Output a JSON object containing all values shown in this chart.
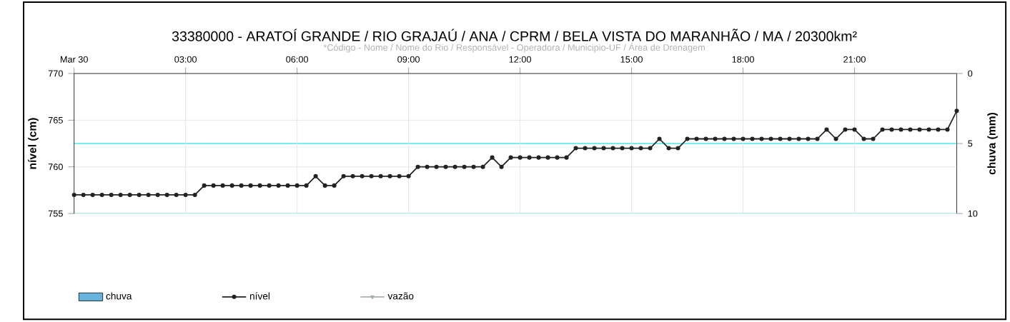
{
  "chart_data": {
    "type": "line",
    "title": "33380000 - ARATOÍ GRANDE / RIO GRAJAÚ / ANA / CPRM / BELA VISTA DO MARANHÃO / MA / 20300km²",
    "subtitle": "*Código - Nome / Nome do Rio / Responsável - Operadora / Municipio-UF / Área de Drenagem",
    "ylabel": "nível (cm)",
    "y2label": "chuva (mm)",
    "x": [
      0,
      0.25,
      0.5,
      0.75,
      1,
      1.25,
      1.5,
      1.75,
      2,
      2.25,
      2.5,
      2.75,
      3,
      3.25,
      3.5,
      3.75,
      4,
      4.25,
      4.5,
      4.75,
      5,
      5.25,
      5.5,
      5.75,
      6,
      6.25,
      6.5,
      6.75,
      7,
      7.25,
      7.5,
      7.75,
      8,
      8.25,
      8.5,
      8.75,
      9,
      9.25,
      9.5,
      9.75,
      10,
      10.25,
      10.5,
      10.75,
      11,
      11.25,
      11.5,
      11.75,
      12,
      12.25,
      12.5,
      12.75,
      13,
      13.25,
      13.5,
      13.75,
      14,
      14.25,
      14.5,
      14.75,
      15,
      15.25,
      15.5,
      15.75,
      16,
      16.25,
      16.5,
      16.75,
      17,
      17.25,
      17.5,
      17.75,
      18,
      18.25,
      18.5,
      18.75,
      19,
      19.25,
      19.5,
      19.75,
      20,
      20.25,
      20.5,
      20.75,
      21,
      21.25,
      21.5,
      21.75,
      22,
      22.25,
      22.5,
      22.75,
      23,
      23.25,
      23.5,
      23.75
    ],
    "series": [
      {
        "name": "chuva",
        "type": "bar",
        "color": "#66b3dd",
        "values": [
          null,
          null,
          null,
          null,
          null,
          null,
          null,
          null,
          null,
          null,
          null,
          null,
          null,
          null,
          null,
          null,
          null,
          null,
          null,
          null,
          null,
          null,
          null,
          null,
          null,
          null,
          null,
          null,
          null,
          null,
          null,
          null,
          null,
          null,
          null,
          null,
          null,
          null,
          null,
          null,
          null,
          null,
          null,
          null,
          null,
          null,
          null,
          null,
          null,
          null,
          null,
          null,
          null,
          null,
          null,
          null,
          null,
          null,
          null,
          null,
          null,
          null,
          null,
          null,
          null,
          null,
          null,
          null,
          null,
          null,
          null,
          null,
          null,
          null,
          null,
          null,
          null,
          null,
          null,
          null,
          null,
          null,
          null,
          null,
          null,
          null,
          null,
          null,
          null,
          null,
          null,
          null,
          null,
          null,
          null,
          null
        ]
      },
      {
        "name": "nível",
        "color": "#222222",
        "values": [
          757,
          757,
          757,
          757,
          757,
          757,
          757,
          757,
          757,
          757,
          757,
          757,
          757,
          757,
          758,
          758,
          758,
          758,
          758,
          758,
          758,
          758,
          758,
          758,
          758,
          758,
          759,
          758,
          758,
          759,
          759,
          759,
          759,
          759,
          759,
          759,
          759,
          760,
          760,
          760,
          760,
          760,
          760,
          760,
          760,
          761,
          760,
          761,
          761,
          761,
          761,
          761,
          761,
          761,
          762,
          762,
          762,
          762,
          762,
          762,
          762,
          762,
          762,
          763,
          762,
          762,
          763,
          763,
          763,
          763,
          763,
          763,
          763,
          763,
          763,
          763,
          763,
          763,
          763,
          763,
          763,
          764,
          763,
          764,
          764,
          763,
          763,
          764,
          764,
          764,
          764,
          764,
          764,
          764,
          764,
          766
        ]
      },
      {
        "name": "vazão",
        "type": "line",
        "color": "#a6b0b0",
        "marker": "triangle",
        "values": [
          null,
          null,
          null,
          null,
          null,
          null,
          null,
          null,
          null,
          null,
          null,
          null,
          null,
          null,
          null,
          null,
          null,
          null,
          null,
          null,
          null,
          null,
          null,
          null,
          null,
          null,
          null,
          null,
          null,
          null,
          null,
          null,
          null,
          null,
          null,
          null,
          null,
          null,
          null,
          null,
          null,
          null,
          null,
          null,
          null,
          null,
          null,
          null,
          null,
          null,
          null,
          null,
          null,
          null,
          null,
          null,
          null,
          null,
          null,
          null,
          null,
          null,
          null,
          null,
          null,
          null,
          null,
          null,
          null,
          null,
          null,
          null,
          null,
          null,
          null,
          null,
          null,
          null,
          null,
          null,
          null,
          null,
          null,
          null,
          null,
          null,
          null,
          null,
          null,
          null,
          null,
          null,
          null,
          null,
          null,
          null
        ]
      }
    ],
    "xlim": [
      0,
      23.75
    ],
    "xticks": [
      {
        "value": 0,
        "label": "Mar 30"
      },
      {
        "value": 3,
        "label": "03:00"
      },
      {
        "value": 6,
        "label": "06:00"
      },
      {
        "value": 9,
        "label": "09:00"
      },
      {
        "value": 12,
        "label": "12:00"
      },
      {
        "value": 15,
        "label": "15:00"
      },
      {
        "value": 18,
        "label": "18:00"
      },
      {
        "value": 21,
        "label": "21:00"
      }
    ],
    "ylim": [
      755,
      770
    ],
    "yticks": [
      755,
      760,
      765,
      770
    ],
    "y2lim": [
      10,
      0
    ],
    "y2ticks": [
      0,
      5,
      10
    ],
    "ref_lines": [
      {
        "axis": "y2",
        "value": 5,
        "color": "#77eeee"
      },
      {
        "axis": "y2",
        "value": 10,
        "color": "#77eeee"
      }
    ],
    "grid": true,
    "legend": "bottom",
    "marker": "circle",
    "line_style": "solid"
  }
}
